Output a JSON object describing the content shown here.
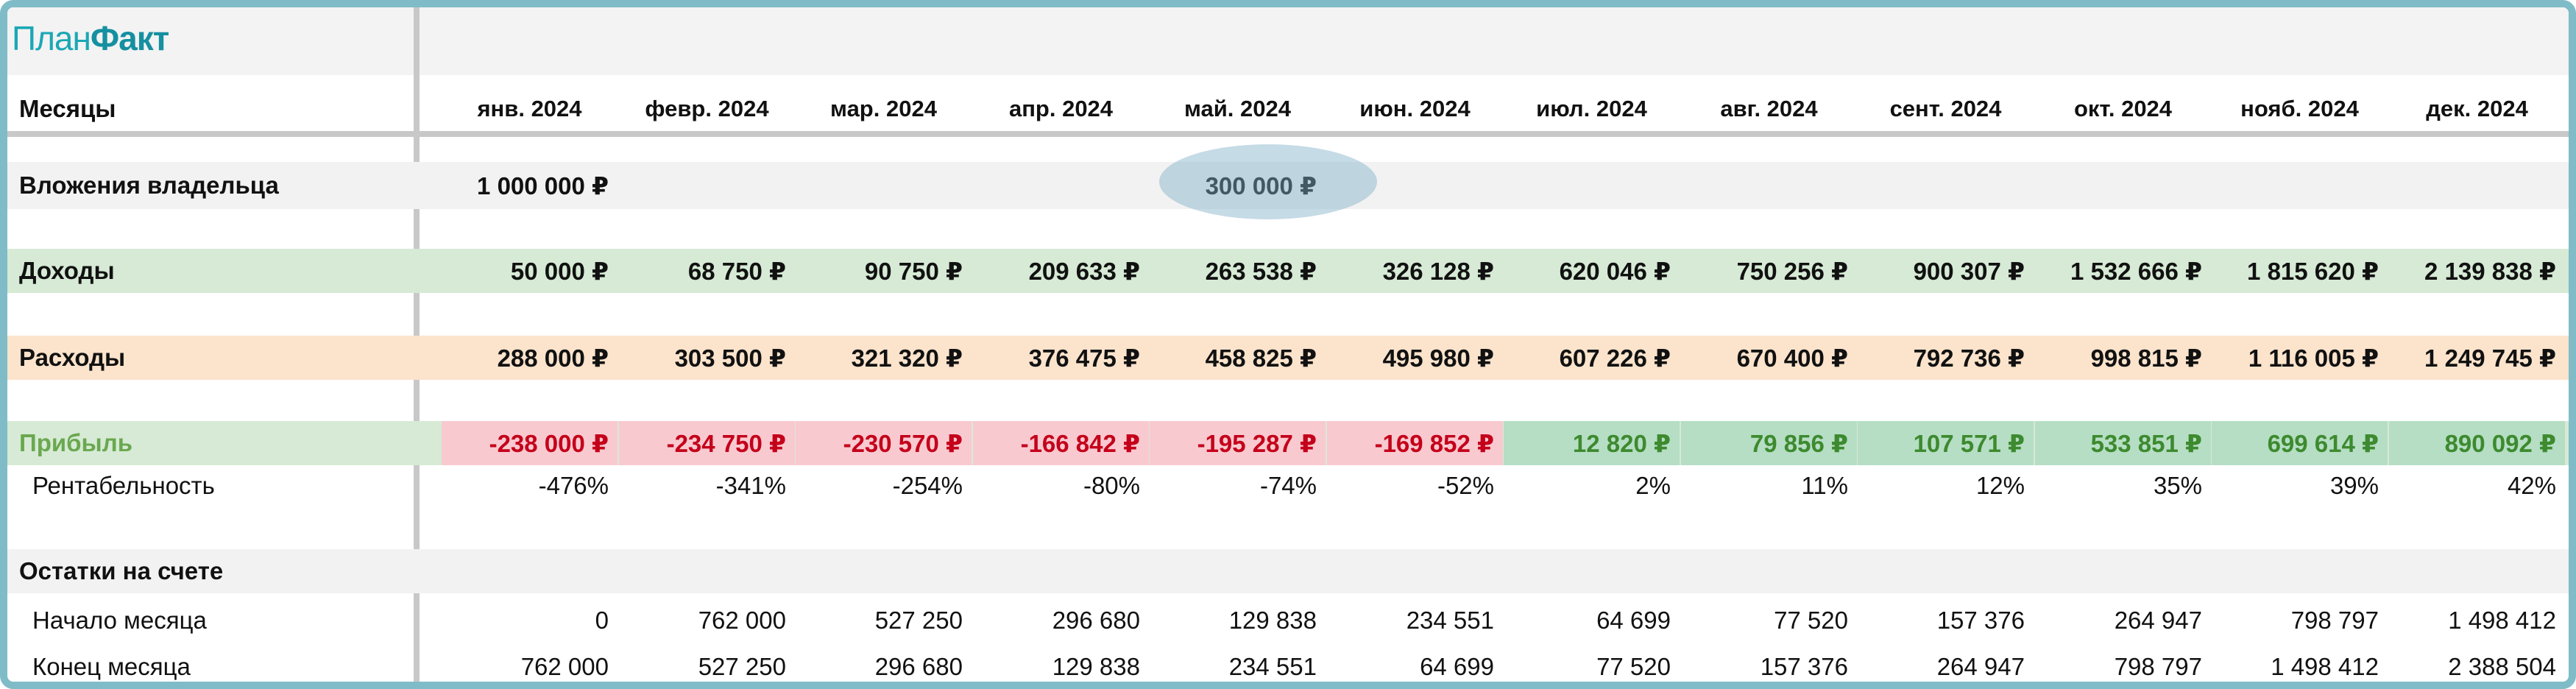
{
  "app": {
    "logo_part1": "План",
    "logo_part2": "Факт"
  },
  "header": {
    "months_label": "Месяцы",
    "months": [
      "янв. 2024",
      "февр. 2024",
      "мар. 2024",
      "апр. 2024",
      "май. 2024",
      "июн. 2024",
      "июл. 2024",
      "авг. 2024",
      "сент. 2024",
      "окт. 2024",
      "нояб. 2024",
      "дек. 2024"
    ]
  },
  "rows": {
    "owner": {
      "label": "Вложения владельца",
      "values": [
        "1 000 000 ₽",
        "",
        "",
        "",
        "300 000 ₽",
        "",
        "",
        "",
        "",
        "",
        "",
        ""
      ]
    },
    "income": {
      "label": "Доходы",
      "values": [
        "50 000 ₽",
        "68 750 ₽",
        "90 750 ₽",
        "209 633 ₽",
        "263 538 ₽",
        "326 128 ₽",
        "620 046 ₽",
        "750 256 ₽",
        "900 307 ₽",
        "1 532 666 ₽",
        "1 815 620 ₽",
        "2 139 838 ₽"
      ]
    },
    "expenses": {
      "label": "Расходы",
      "values": [
        "288 000 ₽",
        "303 500 ₽",
        "321 320 ₽",
        "376 475 ₽",
        "458 825 ₽",
        "495 980 ₽",
        "607 226 ₽",
        "670 400 ₽",
        "792 736 ₽",
        "998 815 ₽",
        "1 116 005 ₽",
        "1 249 745 ₽"
      ]
    },
    "profit": {
      "label": "Прибыль",
      "values": [
        "-238 000 ₽",
        "-234 750 ₽",
        "-230 570 ₽",
        "-166 842 ₽",
        "-195 287 ₽",
        "-169 852 ₽",
        "12 820 ₽",
        "79 856 ₽",
        "107 571 ₽",
        "533 851 ₽",
        "699 614 ₽",
        "890 092 ₽"
      ]
    },
    "margin": {
      "label": "Рентабельность",
      "values": [
        "-476%",
        "-341%",
        "-254%",
        "-80%",
        "-74%",
        "-52%",
        "2%",
        "11%",
        "12%",
        "35%",
        "39%",
        "42%"
      ]
    },
    "balances": {
      "label": "Остатки на счете"
    },
    "start": {
      "label": "Начало месяца",
      "values": [
        "0",
        "762 000",
        "527 250",
        "296 680",
        "129 838",
        "234 551",
        "64 699",
        "77 520",
        "157 376",
        "264 947",
        "798 797",
        "1 498 412"
      ]
    },
    "end": {
      "label": "Конец месяца",
      "values": [
        "762 000",
        "527 250",
        "296 680",
        "129 838",
        "234 551",
        "64 699",
        "77 520",
        "157 376",
        "264 947",
        "798 797",
        "1 498 412",
        "2 388 504"
      ]
    }
  },
  "colors": {
    "frame": "#7fbcc8",
    "logo": "#1ba7b5",
    "income_bg": "#d6ead5",
    "expenses_bg": "#fbe3cc",
    "negative_bg": "#f9c9d0",
    "negative_text": "#c4001a",
    "positive_bg": "#b6dec4",
    "positive_text": "#3d8a2f",
    "highlight": "#7fb0c8"
  }
}
